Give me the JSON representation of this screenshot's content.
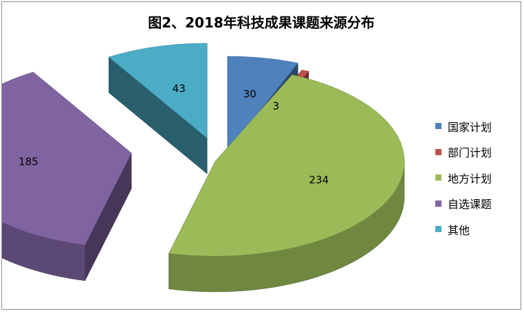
{
  "chart_data": {
    "type": "pie",
    "title": "图2、2018年科技成果课题来源分布",
    "style": "3d-exploded",
    "legend_position": "right",
    "categories": [
      "国家计划",
      "部门计划",
      "地方计划",
      "自选课题",
      "其他"
    ],
    "values": [
      30,
      3,
      234,
      185,
      43
    ],
    "colors": [
      "#4f81bd",
      "#c0504d",
      "#9bbb59",
      "#8064a2",
      "#4bacc6"
    ]
  }
}
